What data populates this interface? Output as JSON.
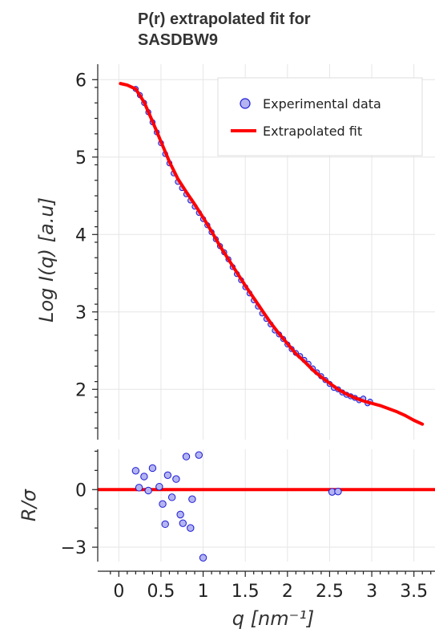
{
  "title": {
    "line1": "P(r) extrapolated fit for",
    "line2": "SASDBW9"
  },
  "colors": {
    "marker_fill": "#b4b4f0",
    "marker_edge": "#1a1ad6",
    "fit_line": "#ff0000",
    "zero_line": "#ff0000",
    "grid": "#e6e6e6"
  },
  "chart_data": [
    {
      "type": "scatter",
      "panel": "main",
      "ylabel": "Log I(q) [a.u]",
      "xlabel": "",
      "xlim": [
        -0.25,
        3.75
      ],
      "ylim": [
        1.35,
        6.2
      ],
      "yticks": [
        2,
        3,
        4,
        5,
        6
      ],
      "grid": true,
      "legend": {
        "position": "top-right",
        "entries": [
          "Experimental data",
          "Extrapolated fit"
        ]
      },
      "series": [
        {
          "name": "Experimental data",
          "kind": "scatter",
          "x": [
            0.2,
            0.25,
            0.3,
            0.35,
            0.4,
            0.45,
            0.5,
            0.55,
            0.6,
            0.65,
            0.7,
            0.75,
            0.8,
            0.85,
            0.9,
            0.95,
            1.0,
            1.05,
            1.1,
            1.15,
            1.2,
            1.25,
            1.3,
            1.35,
            1.4,
            1.45,
            1.5,
            1.55,
            1.6,
            1.65,
            1.7,
            1.75,
            1.8,
            1.85,
            1.9,
            1.95,
            2.0,
            2.05,
            2.1,
            2.15,
            2.2,
            2.25,
            2.3,
            2.35,
            2.4,
            2.45,
            2.5,
            2.55,
            2.6,
            2.65,
            2.7,
            2.75,
            2.8,
            2.85,
            2.9,
            2.95,
            2.98
          ],
          "y": [
            5.88,
            5.8,
            5.7,
            5.58,
            5.45,
            5.32,
            5.18,
            5.04,
            4.92,
            4.79,
            4.68,
            4.6,
            4.52,
            4.44,
            4.36,
            4.28,
            4.2,
            4.12,
            4.03,
            3.94,
            3.85,
            3.77,
            3.68,
            3.58,
            3.49,
            3.41,
            3.32,
            3.24,
            3.15,
            3.07,
            2.98,
            2.91,
            2.84,
            2.76,
            2.71,
            2.65,
            2.58,
            2.52,
            2.47,
            2.43,
            2.38,
            2.33,
            2.27,
            2.22,
            2.17,
            2.12,
            2.07,
            2.02,
            2.0,
            1.96,
            1.93,
            1.91,
            1.89,
            1.86,
            1.88,
            1.82,
            1.84
          ]
        },
        {
          "name": "Extrapolated fit",
          "kind": "line",
          "x": [
            0.02,
            0.1,
            0.2,
            0.3,
            0.4,
            0.5,
            0.6,
            0.7,
            0.8,
            0.9,
            1.0,
            1.1,
            1.2,
            1.3,
            1.4,
            1.5,
            1.6,
            1.7,
            1.8,
            1.9,
            2.0,
            2.1,
            2.2,
            2.3,
            2.4,
            2.5,
            2.6,
            2.7,
            2.8,
            2.9,
            3.0,
            3.1,
            3.2,
            3.3,
            3.4,
            3.5,
            3.6
          ],
          "y": [
            5.95,
            5.93,
            5.88,
            5.71,
            5.46,
            5.2,
            4.94,
            4.72,
            4.55,
            4.39,
            4.22,
            4.04,
            3.85,
            3.68,
            3.51,
            3.34,
            3.18,
            3.02,
            2.86,
            2.72,
            2.59,
            2.46,
            2.36,
            2.25,
            2.16,
            2.08,
            2.0,
            1.94,
            1.89,
            1.85,
            1.82,
            1.79,
            1.75,
            1.71,
            1.66,
            1.6,
            1.55
          ]
        }
      ]
    },
    {
      "type": "scatter",
      "panel": "residuals",
      "ylabel": "R/σ",
      "xlabel": "q [nm⁻¹]",
      "xlim": [
        -0.25,
        3.75
      ],
      "ylim": [
        -3.75,
        2.1
      ],
      "yticks": [
        -3,
        0
      ],
      "ytick_labels": [
        "−3",
        "0"
      ],
      "xticks": [
        0,
        0.5,
        1,
        1.5,
        2,
        2.5,
        3,
        3.5
      ],
      "xtick_labels": [
        "0",
        "0.5",
        "1",
        "1.5",
        "2",
        "2.5",
        "3",
        "3.5"
      ],
      "grid": true,
      "series": [
        {
          "name": "",
          "kind": "scatter",
          "x": [
            0.2,
            0.24,
            0.3,
            0.35,
            0.4,
            0.48,
            0.52,
            0.55,
            0.58,
            0.63,
            0.68,
            0.73,
            0.76,
            0.8,
            0.85,
            0.87,
            0.95,
            1.0,
            2.53,
            2.6
          ],
          "y": [
            0.98,
            0.1,
            0.68,
            -0.05,
            1.12,
            0.15,
            -0.75,
            -1.8,
            0.75,
            -0.4,
            0.55,
            -1.3,
            -1.75,
            1.72,
            -2.0,
            -0.5,
            1.8,
            -3.55,
            -0.12,
            -0.1
          ]
        },
        {
          "name": "",
          "kind": "hline",
          "y": 0
        }
      ]
    }
  ]
}
